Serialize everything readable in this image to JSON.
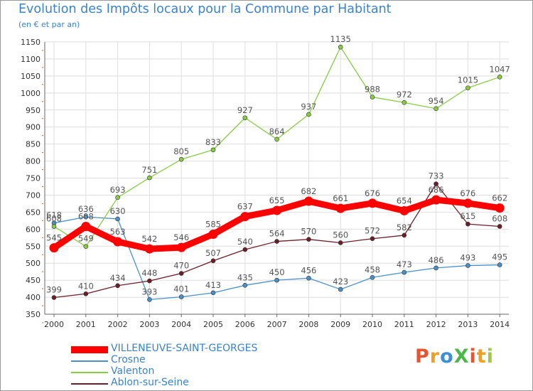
{
  "header": {
    "title": "Evolution des Impôts locaux pour la Commune par Habitant",
    "subtitle": "(en € et par an)"
  },
  "logo": {
    "text": "ProXiti",
    "colors": [
      "#e8542f",
      "#f0a020",
      "#3b8fd8",
      "#4cb84c",
      "#e8542f",
      "#f0a020",
      "#9ccc3c"
    ]
  },
  "chart_data": {
    "type": "line",
    "title": "Evolution des Impôts locaux pour la Commune par Habitant",
    "subtitle": "(en € et par an)",
    "x": [
      2000,
      2001,
      2002,
      2003,
      2004,
      2005,
      2006,
      2007,
      2008,
      2009,
      2010,
      2011,
      2012,
      2013,
      2014
    ],
    "ylim": [
      350,
      1150
    ],
    "yticks": [
      350,
      400,
      450,
      500,
      550,
      600,
      650,
      700,
      750,
      800,
      850,
      900,
      950,
      1000,
      1050,
      1100,
      1150
    ],
    "grid": true,
    "legend": "bottom-left",
    "series": [
      {
        "name": "VILLENEUVE-SAINT-GEORGES",
        "color": "#ff0000",
        "values": [
          545,
          608,
          563,
          542,
          546,
          585,
          637,
          655,
          682,
          661,
          676,
          654,
          686,
          676,
          662
        ]
      },
      {
        "name": "Crosne",
        "color": "#4a90c8",
        "values": [
          618,
          636,
          630,
          393,
          401,
          413,
          435,
          450,
          456,
          423,
          458,
          473,
          486,
          493,
          495
        ]
      },
      {
        "name": "Valenton",
        "color": "#88cc44",
        "values": [
          608,
          549,
          693,
          751,
          805,
          833,
          927,
          864,
          937,
          1135,
          988,
          972,
          954,
          1015,
          1047
        ]
      },
      {
        "name": "Ablon-sur-Seine",
        "color": "#6b1e28",
        "values": [
          399,
          410,
          434,
          448,
          470,
          507,
          540,
          564,
          570,
          560,
          572,
          582,
          733,
          615,
          608
        ]
      }
    ]
  }
}
